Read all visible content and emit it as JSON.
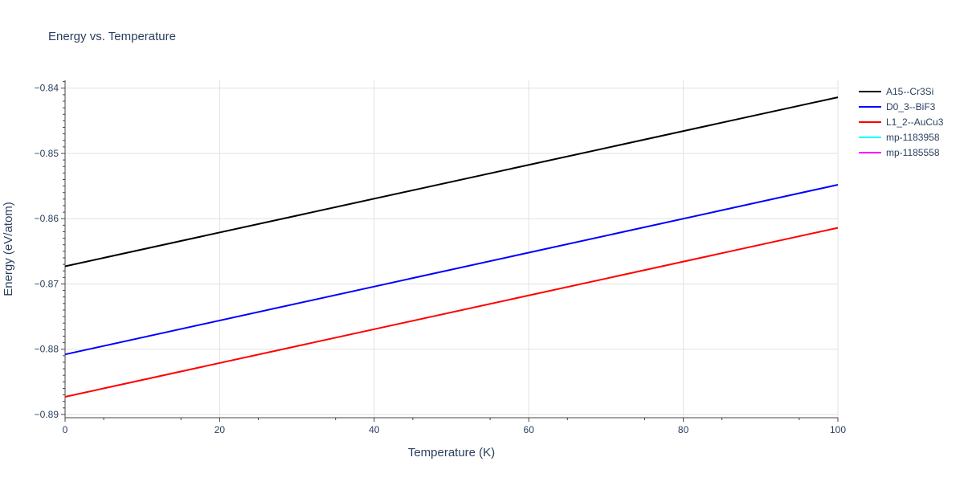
{
  "chart_data": {
    "type": "line",
    "title": "Energy vs. Temperature",
    "xlabel": "Temperature (K)",
    "ylabel": "Energy (eV/atom)",
    "xlim": [
      0,
      100
    ],
    "ylim": [
      -0.8905,
      -0.8388
    ],
    "x_ticks": [
      0,
      20,
      40,
      60,
      80,
      100
    ],
    "y_ticks": [
      -0.89,
      -0.88,
      -0.87,
      -0.86,
      -0.85,
      -0.84
    ],
    "y_tick_labels": [
      "−0.89",
      "−0.88",
      "−0.87",
      "−0.86",
      "−0.85",
      "−0.84"
    ],
    "grid": true,
    "legend_position": "top-right",
    "series": [
      {
        "name": "A15--Cr3Si",
        "color": "#000000",
        "x": [
          0,
          100
        ],
        "y": [
          -0.8673,
          -0.8414
        ]
      },
      {
        "name": "D0_3--BiF3",
        "color": "#0000ff",
        "x": [
          0,
          100
        ],
        "y": [
          -0.8808,
          -0.8548
        ]
      },
      {
        "name": "L1_2--AuCu3",
        "color": "#ff0000",
        "x": [
          0,
          100
        ],
        "y": [
          -0.8873,
          -0.8614
        ]
      },
      {
        "name": "mp-1183958",
        "color": "#00ffff",
        "x": [],
        "y": []
      },
      {
        "name": "mp-1185558",
        "color": "#ff00ff",
        "x": [],
        "y": []
      }
    ]
  }
}
